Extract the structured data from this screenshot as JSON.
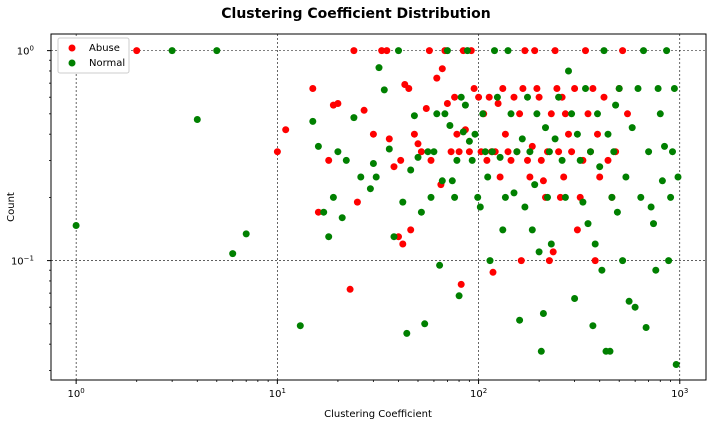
{
  "chart_data": {
    "type": "scatter",
    "title": "Clustering Coefficient Distribution",
    "xlabel": "Clustering Coefficient",
    "ylabel": "Count",
    "xscale": "log",
    "yscale": "log",
    "xlim": [
      0.75,
      1350
    ],
    "ylim": [
      0.027,
      1.2
    ],
    "xticks": [
      {
        "value": 1,
        "base": "10",
        "exp": "0"
      },
      {
        "value": 10,
        "base": "10",
        "exp": "1"
      },
      {
        "value": 100,
        "base": "10",
        "exp": "2"
      },
      {
        "value": 1000,
        "base": "10",
        "exp": "3"
      }
    ],
    "yticks": [
      {
        "value": 0.1,
        "base": "10",
        "exp": "−1"
      },
      {
        "value": 1,
        "base": "10",
        "exp": "0"
      }
    ],
    "grid": true,
    "legend_position": "top-left",
    "series": [
      {
        "name": "Abuse",
        "color": "#ff0000",
        "points": [
          [
            2,
            1
          ],
          [
            10,
            0.33
          ],
          [
            11,
            0.42
          ],
          [
            15,
            0.66
          ],
          [
            16,
            0.17
          ],
          [
            18,
            0.3
          ],
          [
            19,
            0.55
          ],
          [
            20,
            0.56
          ],
          [
            23,
            0.073
          ],
          [
            24,
            1
          ],
          [
            25,
            0.19
          ],
          [
            27,
            0.52
          ],
          [
            30,
            0.4
          ],
          [
            33,
            1
          ],
          [
            35,
            1
          ],
          [
            36,
            0.38
          ],
          [
            38,
            0.28
          ],
          [
            40,
            0.13
          ],
          [
            41,
            0.3
          ],
          [
            42,
            0.12
          ],
          [
            43,
            0.69
          ],
          [
            45,
            0.66
          ],
          [
            46,
            0.14
          ],
          [
            48,
            0.4
          ],
          [
            50,
            0.36
          ],
          [
            52,
            0.33
          ],
          [
            55,
            0.53
          ],
          [
            57,
            1
          ],
          [
            58,
            0.3
          ],
          [
            62,
            0.74
          ],
          [
            65,
            0.23
          ],
          [
            66,
            0.82
          ],
          [
            68,
            1
          ],
          [
            70,
            0.56
          ],
          [
            73,
            0.33
          ],
          [
            76,
            0.6
          ],
          [
            78,
            0.4
          ],
          [
            80,
            0.33
          ],
          [
            82,
            0.077
          ],
          [
            84,
            1
          ],
          [
            86,
            0.42
          ],
          [
            90,
            0.33
          ],
          [
            92,
            1
          ],
          [
            95,
            0.66
          ],
          [
            100,
            0.6
          ],
          [
            103,
            0.33
          ],
          [
            106,
            0.5
          ],
          [
            110,
            0.3
          ],
          [
            113,
            0.6
          ],
          [
            116,
            0.33
          ],
          [
            118,
            0.088
          ],
          [
            121,
            0.33
          ],
          [
            125,
            0.56
          ],
          [
            128,
            0.25
          ],
          [
            132,
            0.66
          ],
          [
            136,
            0.4
          ],
          [
            140,
            0.33
          ],
          [
            145,
            0.3
          ],
          [
            150,
            0.6
          ],
          [
            155,
            0.33
          ],
          [
            160,
            0.5
          ],
          [
            163,
            0.1
          ],
          [
            166,
            0.66
          ],
          [
            170,
            1
          ],
          [
            175,
            0.3
          ],
          [
            180,
            0.25
          ],
          [
            185,
            0.35
          ],
          [
            190,
            1
          ],
          [
            195,
            0.66
          ],
          [
            200,
            0.6
          ],
          [
            205,
            0.3
          ],
          [
            210,
            0.24
          ],
          [
            215,
            0.2
          ],
          [
            220,
            0.33
          ],
          [
            225,
            0.1
          ],
          [
            230,
            0.5
          ],
          [
            235,
            0.11
          ],
          [
            240,
            1
          ],
          [
            245,
            0.66
          ],
          [
            250,
            0.33
          ],
          [
            255,
            0.2
          ],
          [
            260,
            0.6
          ],
          [
            265,
            0.25
          ],
          [
            270,
            0.5
          ],
          [
            280,
            0.4
          ],
          [
            290,
            0.33
          ],
          [
            300,
            0.66
          ],
          [
            310,
            0.14
          ],
          [
            320,
            0.2
          ],
          [
            330,
            0.3
          ],
          [
            340,
            1
          ],
          [
            350,
            0.5
          ],
          [
            360,
            0.33
          ],
          [
            370,
            0.66
          ],
          [
            380,
            0.1
          ],
          [
            390,
            0.4
          ],
          [
            400,
            0.25
          ],
          [
            420,
            0.6
          ],
          [
            440,
            0.3
          ],
          [
            460,
            0.2
          ],
          [
            480,
            0.33
          ],
          [
            500,
            0.66
          ],
          [
            520,
            1
          ],
          [
            550,
            0.5
          ]
        ]
      },
      {
        "name": "Normal",
        "color": "#008000",
        "points": [
          [
            1,
            0.147
          ],
          [
            3,
            1
          ],
          [
            4,
            0.47
          ],
          [
            5,
            1
          ],
          [
            6,
            0.108
          ],
          [
            7,
            0.134
          ],
          [
            13,
            0.049
          ],
          [
            15,
            0.46
          ],
          [
            16,
            0.35
          ],
          [
            17,
            0.17
          ],
          [
            18,
            0.13
          ],
          [
            19,
            0.2
          ],
          [
            20,
            0.33
          ],
          [
            21,
            0.16
          ],
          [
            22,
            0.3
          ],
          [
            24,
            0.48
          ],
          [
            26,
            0.25
          ],
          [
            29,
            0.22
          ],
          [
            30,
            0.29
          ],
          [
            31,
            0.25
          ],
          [
            32,
            0.83
          ],
          [
            34,
            0.65
          ],
          [
            36,
            0.34
          ],
          [
            38,
            0.13
          ],
          [
            40,
            1
          ],
          [
            42,
            0.19
          ],
          [
            44,
            0.045
          ],
          [
            46,
            0.27
          ],
          [
            48,
            0.49
          ],
          [
            50,
            0.31
          ],
          [
            52,
            0.17
          ],
          [
            54,
            0.05
          ],
          [
            56,
            0.33
          ],
          [
            58,
            0.2
          ],
          [
            60,
            0.33
          ],
          [
            62,
            0.5
          ],
          [
            64,
            0.095
          ],
          [
            66,
            0.24
          ],
          [
            68,
            0.5
          ],
          [
            70,
            1
          ],
          [
            72,
            0.44
          ],
          [
            74,
            0.24
          ],
          [
            76,
            0.2
          ],
          [
            78,
            0.3
          ],
          [
            80,
            0.068
          ],
          [
            82,
            0.6
          ],
          [
            84,
            0.41
          ],
          [
            86,
            0.55
          ],
          [
            88,
            1
          ],
          [
            90,
            0.37
          ],
          [
            93,
            0.3
          ],
          [
            96,
            0.4
          ],
          [
            99,
            0.2
          ],
          [
            102,
            0.18
          ],
          [
            105,
            0.5
          ],
          [
            108,
            0.33
          ],
          [
            111,
            0.25
          ],
          [
            114,
            0.1
          ],
          [
            117,
            0.33
          ],
          [
            120,
            1
          ],
          [
            124,
            0.6
          ],
          [
            128,
            0.31
          ],
          [
            132,
            0.14
          ],
          [
            136,
            0.2
          ],
          [
            140,
            1
          ],
          [
            145,
            0.5
          ],
          [
            150,
            0.21
          ],
          [
            155,
            0.33
          ],
          [
            160,
            0.052
          ],
          [
            165,
            0.38
          ],
          [
            170,
            0.18
          ],
          [
            175,
            0.6
          ],
          [
            180,
            0.33
          ],
          [
            185,
            0.14
          ],
          [
            190,
            0.23
          ],
          [
            195,
            0.5
          ],
          [
            200,
            0.11
          ],
          [
            205,
            0.037
          ],
          [
            210,
            0.056
          ],
          [
            215,
            0.43
          ],
          [
            220,
            0.2
          ],
          [
            225,
            0.33
          ],
          [
            230,
            0.12
          ],
          [
            240,
            0.38
          ],
          [
            250,
            0.6
          ],
          [
            260,
            0.3
          ],
          [
            270,
            0.2
          ],
          [
            280,
            0.8
          ],
          [
            290,
            0.5
          ],
          [
            300,
            0.066
          ],
          [
            310,
            0.4
          ],
          [
            320,
            0.3
          ],
          [
            330,
            0.19
          ],
          [
            340,
            0.66
          ],
          [
            350,
            0.15
          ],
          [
            360,
            0.33
          ],
          [
            370,
            0.049
          ],
          [
            380,
            0.12
          ],
          [
            390,
            0.5
          ],
          [
            400,
            0.28
          ],
          [
            410,
            0.09
          ],
          [
            420,
            1
          ],
          [
            430,
            0.037
          ],
          [
            440,
            0.4
          ],
          [
            450,
            0.037
          ],
          [
            460,
            0.2
          ],
          [
            470,
            0.33
          ],
          [
            480,
            0.55
          ],
          [
            490,
            0.17
          ],
          [
            500,
            0.66
          ],
          [
            520,
            0.1
          ],
          [
            540,
            0.25
          ],
          [
            560,
            0.064
          ],
          [
            580,
            0.43
          ],
          [
            600,
            0.06
          ],
          [
            620,
            0.66
          ],
          [
            640,
            0.2
          ],
          [
            660,
            1
          ],
          [
            680,
            0.048
          ],
          [
            700,
            0.33
          ],
          [
            720,
            0.18
          ],
          [
            740,
            0.15
          ],
          [
            760,
            0.09
          ],
          [
            780,
            0.66
          ],
          [
            800,
            0.5
          ],
          [
            820,
            0.24
          ],
          [
            840,
            0.35
          ],
          [
            860,
            1
          ],
          [
            880,
            0.1
          ],
          [
            900,
            0.2
          ],
          [
            920,
            0.33
          ],
          [
            940,
            0.66
          ],
          [
            960,
            0.032
          ],
          [
            980,
            0.25
          ]
        ]
      }
    ]
  }
}
